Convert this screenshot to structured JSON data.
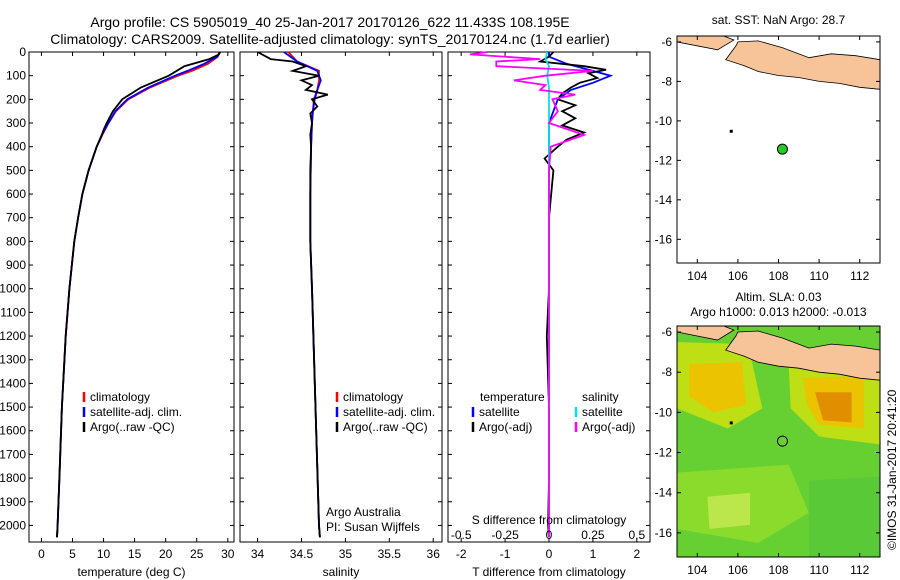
{
  "header": {
    "title_line1": "Argo profile: CS 5905019_40 25-Jan-2017 20170126_622 11.433S 108.195E",
    "title_line2": "Climatology: CARS2009. Satellite-adjusted climatology: synTS_20170124.nc (1.7d earlier)"
  },
  "colors": {
    "climatology": "#ff0000",
    "satellite": "#0000ff",
    "argo": "#000000",
    "satellite_s": "#00e5e5",
    "argo_s": "#ff00ff",
    "land": "#f7c49a"
  },
  "chart_data": [
    {
      "type": "line",
      "xlabel": "temperature (deg C)",
      "ylabel": "",
      "xlim": [
        -2,
        31
      ],
      "ylim": [
        2070,
        0
      ],
      "xticks": [
        "0",
        "5",
        "10",
        "15",
        "20",
        "25",
        "30"
      ],
      "yticks": [
        "0",
        "100",
        "200",
        "300",
        "400",
        "500",
        "600",
        "700",
        "800",
        "900",
        "1000",
        "1100",
        "1200",
        "1300",
        "1400",
        "1500",
        "1600",
        "1700",
        "1800",
        "1900",
        "2000"
      ],
      "legend": [
        "climatology",
        "satellite-adj. clim.",
        "Argo(..raw -QC)"
      ],
      "legend_position": "bottom-right",
      "series": [
        {
          "name": "climatology",
          "color": "#ff0000",
          "depth": [
            0,
            20,
            50,
            80,
            100,
            150,
            200,
            250,
            300,
            350,
            400,
            500,
            600,
            700,
            800,
            1000,
            1200,
            1500,
            1800,
            2000,
            2050
          ],
          "values": [
            28.6,
            28.4,
            26.8,
            24.2,
            22.0,
            17.5,
            14.0,
            12.0,
            10.8,
            9.8,
            8.9,
            7.6,
            6.6,
            5.9,
            5.3,
            4.5,
            3.9,
            3.3,
            2.9,
            2.6,
            2.5
          ]
        },
        {
          "name": "satellite-adj. clim.",
          "color": "#0000ff",
          "depth": [
            0,
            20,
            50,
            80,
            100,
            150,
            200,
            250,
            300,
            350,
            400,
            500,
            600,
            700,
            800,
            1000,
            1200,
            1500,
            1800,
            2000,
            2050
          ],
          "values": [
            28.8,
            28.3,
            26.2,
            23.5,
            21.5,
            17.2,
            13.8,
            11.9,
            10.8,
            9.7,
            8.9,
            7.6,
            6.6,
            5.9,
            5.3,
            4.5,
            3.9,
            3.3,
            2.9,
            2.6,
            2.5
          ]
        },
        {
          "name": "Argo(..raw -QC)",
          "color": "#000000",
          "depth": [
            0,
            10,
            30,
            60,
            100,
            150,
            200,
            250,
            300,
            330,
            360,
            400,
            500,
            600,
            700,
            800,
            1000,
            1200,
            1500,
            1800,
            2000,
            2050
          ],
          "values": [
            28.7,
            28.6,
            27.0,
            23.0,
            20.5,
            16.0,
            13.0,
            11.5,
            10.5,
            10.0,
            9.6,
            8.9,
            7.6,
            6.6,
            5.9,
            5.3,
            4.5,
            3.9,
            3.3,
            2.9,
            2.6,
            2.5
          ]
        }
      ]
    },
    {
      "type": "line",
      "xlabel": "salinity",
      "xlim": [
        33.8,
        36.1
      ],
      "ylim": [
        2070,
        0
      ],
      "xticks": [
        "34",
        "34.5",
        "35",
        "35.5",
        "36"
      ],
      "legend": [
        "climatology",
        "satellite-adj. clim.",
        "Argo(..raw -QC)"
      ],
      "legend_position": "bottom-right",
      "annotations": [
        "Argo Australia",
        "PI: Susan Wijffels"
      ],
      "series": [
        {
          "name": "climatology",
          "color": "#ff0000",
          "depth": [
            0,
            40,
            80,
            120,
            160,
            200,
            250,
            300,
            400,
            600,
            800,
            1000,
            1500,
            2000,
            2050
          ],
          "values": [
            34.35,
            34.45,
            34.7,
            34.7,
            34.68,
            34.64,
            34.63,
            34.62,
            34.61,
            34.6,
            34.6,
            34.62,
            34.66,
            34.7,
            34.71
          ]
        },
        {
          "name": "satellite-adj. clim.",
          "color": "#0000ff",
          "depth": [
            0,
            40,
            80,
            120,
            160,
            200,
            250,
            300,
            400,
            600,
            800,
            1000,
            1500,
            2000,
            2050
          ],
          "values": [
            34.3,
            34.45,
            34.68,
            34.72,
            34.68,
            34.65,
            34.63,
            34.62,
            34.61,
            34.6,
            34.6,
            34.62,
            34.66,
            34.7,
            34.71
          ]
        },
        {
          "name": "Argo(..raw -QC)",
          "color": "#000000",
          "depth": [
            0,
            30,
            40,
            60,
            80,
            100,
            120,
            140,
            160,
            180,
            200,
            230,
            260,
            300,
            350,
            400,
            500,
            600,
            800,
            1000,
            1500,
            2000,
            2050
          ],
          "values": [
            34.0,
            34.15,
            34.4,
            34.55,
            34.4,
            34.7,
            34.5,
            34.62,
            34.55,
            34.8,
            34.62,
            34.68,
            34.6,
            34.62,
            34.6,
            34.61,
            34.6,
            34.6,
            34.6,
            34.62,
            34.66,
            34.7,
            34.71
          ]
        }
      ]
    },
    {
      "type": "line",
      "xlabel": "T difference from climatology",
      "xlabel_top": "S difference from climatology",
      "xlim": [
        -2.3,
        2.3
      ],
      "ylim": [
        2070,
        0
      ],
      "xticks": [
        "-2",
        "-1",
        "0",
        "1",
        "2"
      ],
      "xticks_top": [
        "-0.5",
        "-0.25",
        "0",
        "0.25",
        "0.5"
      ],
      "legend": [
        "temperature",
        "satellite",
        "Argo(-adj)",
        "salinity",
        "satellite",
        "Argo(-adj)"
      ],
      "legend_position": "bottom",
      "series": [
        {
          "name": "satellite",
          "group": "temperature",
          "color": "#0000ff",
          "depth": [
            0,
            20,
            50,
            80,
            100,
            130,
            160,
            200,
            250,
            300,
            400,
            600,
            1000,
            1500,
            2050
          ],
          "values": [
            0.0,
            0.0,
            0.4,
            1.0,
            1.4,
            1.0,
            0.5,
            0.2,
            0.1,
            0.0,
            0.0,
            0.0,
            0.0,
            0.0,
            0.0
          ]
        },
        {
          "name": "Argo(-adj)",
          "group": "temperature",
          "color": "#000000",
          "depth": [
            0,
            20,
            40,
            60,
            75,
            90,
            110,
            130,
            150,
            175,
            200,
            225,
            250,
            280,
            310,
            340,
            370,
            400,
            450,
            500,
            600,
            700,
            800,
            1000,
            1200,
            1500,
            1800,
            2000,
            2050
          ],
          "values": [
            0.1,
            0.0,
            -0.2,
            0.8,
            1.3,
            0.9,
            1.1,
            0.7,
            0.5,
            0.3,
            0.2,
            0.6,
            0.3,
            0.6,
            0.3,
            0.8,
            0.4,
            0.2,
            -0.1,
            0.1,
            0.05,
            0.0,
            0.0,
            0.0,
            -0.05,
            0.0,
            0.0,
            -0.02,
            0.0
          ]
        },
        {
          "name": "satellite",
          "group": "salinity",
          "color": "#00e5e5",
          "depth": [
            0,
            30,
            60,
            100,
            150,
            200,
            300,
            500,
            1000,
            2050
          ],
          "values": [
            -0.01,
            -0.02,
            0.0,
            -0.01,
            0.0,
            0.0,
            0.0,
            0.0,
            0.0,
            0.0
          ]
        },
        {
          "name": "Argo(-adj)",
          "group": "salinity",
          "color": "#ff00ff",
          "depth": [
            0,
            10,
            30,
            40,
            60,
            80,
            100,
            120,
            140,
            160,
            180,
            200,
            250,
            300,
            350,
            400,
            500,
            600,
            800,
            1000,
            1500,
            2000,
            2050
          ],
          "values": [
            -0.35,
            -0.45,
            -0.05,
            -0.3,
            -0.3,
            0.25,
            -0.02,
            -0.2,
            -0.02,
            -0.05,
            0.15,
            0.02,
            0.05,
            0.0,
            0.2,
            0.01,
            0.0,
            0.0,
            0.0,
            0.0,
            0.0,
            0.0,
            0.0
          ]
        }
      ]
    },
    {
      "type": "scatter",
      "title": "sat. SST: NaN Argo: 28.7",
      "xlim": [
        103,
        113
      ],
      "ylim": [
        -17.2,
        -5.7
      ],
      "xticks": [
        "104",
        "106",
        "108",
        "110",
        "112"
      ],
      "yticks": [
        "-6",
        "-8",
        "-10",
        "-12",
        "-14",
        "-16"
      ],
      "point": {
        "lon": 108.195,
        "lat": -11.433
      }
    },
    {
      "type": "heatmap",
      "title_line1": "Altim. SLA: 0.03",
      "title_line2": "Argo h1000: 0.013 h2000: -0.013",
      "xlim": [
        103,
        113
      ],
      "ylim": [
        -17.2,
        -5.7
      ],
      "xticks": [
        "104",
        "106",
        "108",
        "110",
        "112"
      ],
      "yticks": [
        "-6",
        "-8",
        "-10",
        "-12",
        "-14",
        "-16"
      ],
      "point": {
        "lon": 108.195,
        "lat": -11.433
      }
    }
  ],
  "footer": {
    "stamp": "©IMOS 31-Jan-2017 20:41:20"
  }
}
